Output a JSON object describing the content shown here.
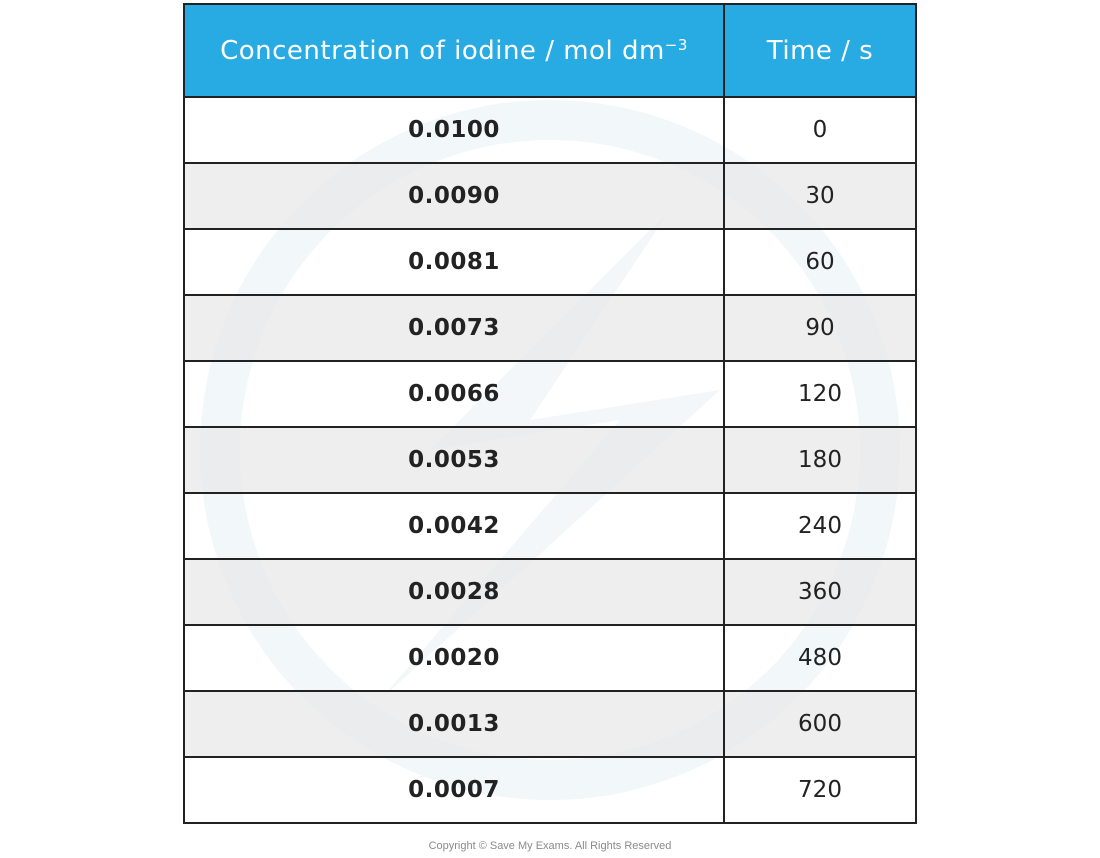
{
  "table": {
    "header": {
      "concentration_label": "Concentration of iodine / mol dm",
      "concentration_superscript": "−3",
      "time_label": "Time / s"
    },
    "rows": [
      {
        "concentration": "0.0100",
        "time": "0"
      },
      {
        "concentration": "0.0090",
        "time": "30"
      },
      {
        "concentration": "0.0081",
        "time": "60"
      },
      {
        "concentration": "0.0073",
        "time": "90"
      },
      {
        "concentration": "0.0066",
        "time": "120"
      },
      {
        "concentration": "0.0053",
        "time": "180"
      },
      {
        "concentration": "0.0042",
        "time": "240"
      },
      {
        "concentration": "0.0028",
        "time": "360"
      },
      {
        "concentration": "0.0020",
        "time": "480"
      },
      {
        "concentration": "0.0013",
        "time": "600"
      },
      {
        "concentration": "0.0007",
        "time": "720"
      }
    ]
  },
  "footer": {
    "copyright": "Copyright © Save My Exams. All Rights Reserved"
  },
  "colors": {
    "header_background": "#27abe2",
    "header_text": "#ffffff",
    "border": "#222222",
    "alt_row": "#ebebeb"
  }
}
